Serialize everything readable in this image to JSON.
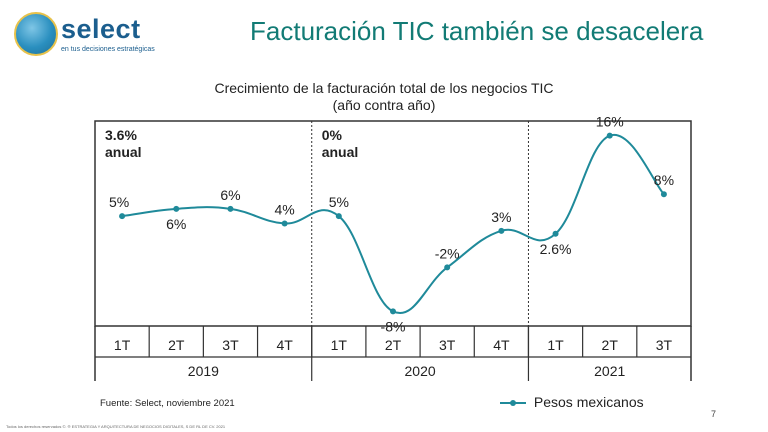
{
  "header": {
    "brand": "select",
    "tagline": "en tus decisiones estratégicas",
    "title": "Facturación TIC también se desacelera"
  },
  "chart_data": {
    "type": "line",
    "title": "Crecimiento de la facturación total de los negocios TIC",
    "subtitle": "(año contra año)",
    "series": [
      {
        "name": "Pesos mexicanos",
        "color": "#1f8a9a",
        "values": [
          5,
          6,
          6,
          4,
          5,
          -8,
          -2,
          3,
          2.6,
          16,
          8
        ]
      }
    ],
    "categories": [
      "1T",
      "2T",
      "3T",
      "4T",
      "1T",
      "2T",
      "3T",
      "4T",
      "1T",
      "2T",
      "3T"
    ],
    "data_labels": [
      "5%",
      "6%",
      "6%",
      "4%",
      "5%",
      "-8%",
      "-2%",
      "3%",
      "2.6%",
      "16%",
      "8%"
    ],
    "groups": [
      {
        "label": "2019",
        "count": 4,
        "annual": "3.6%",
        "annual_label": "anual"
      },
      {
        "label": "2020",
        "count": 4,
        "annual": "0%",
        "annual_label": "anual"
      },
      {
        "label": "2021",
        "count": 3
      }
    ],
    "ylim": [
      -10,
      18
    ]
  },
  "legend": {
    "label": "Pesos mexicanos"
  },
  "source": "Fuente: Select, noviembre 2021",
  "page_number": "7",
  "footer": "Todos los derechos reservados ©. ® ESTRATEGIA Y ARQUITECTURA DE NEGOCIOS DIGITALES, S DE RL DE CV. 2021"
}
